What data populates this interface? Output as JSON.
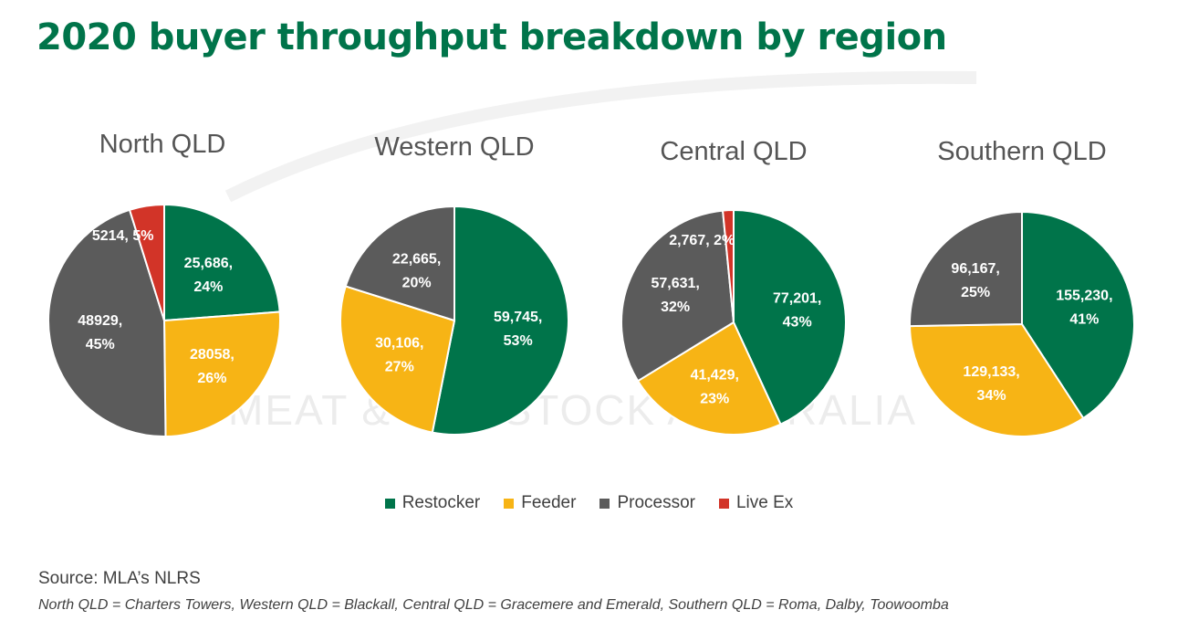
{
  "title": "2020 buyer throughput breakdown by region",
  "colors": {
    "title": "#00744A",
    "Restocker": "#00744A",
    "Feeder": "#F7B415",
    "Processor": "#5B5B5B",
    "Live Ex": "#D23428"
  },
  "legend": [
    "Restocker",
    "Feeder",
    "Processor",
    "Live Ex"
  ],
  "source": "Source: MLA’s NLRS",
  "footnote": "North QLD = Charters Towers, Western QLD = Blackall, Central QLD = Gracemere and Emerald, Southern QLD = Roma, Dalby, Toowoomba",
  "watermark_text": "MEAT & LIVESTOCK AUSTRALIA",
  "chart_data": [
    {
      "type": "pie",
      "title": "North QLD",
      "slices": [
        {
          "category": "Restocker",
          "value": 25686,
          "label": "25,686,",
          "pct": "24%"
        },
        {
          "category": "Feeder",
          "value": 28058,
          "label": "28058,",
          "pct": "26%"
        },
        {
          "category": "Processor",
          "value": 48929,
          "label": "48929,",
          "pct": "45%"
        },
        {
          "category": "Live Ex",
          "value": 5214,
          "label": "5214,",
          "pct": "5%"
        }
      ]
    },
    {
      "type": "pie",
      "title": "Western QLD",
      "slices": [
        {
          "category": "Restocker",
          "value": 59745,
          "label": "59,745,",
          "pct": "53%"
        },
        {
          "category": "Feeder",
          "value": 30106,
          "label": "30,106,",
          "pct": "27%"
        },
        {
          "category": "Processor",
          "value": 22665,
          "label": "22,665,",
          "pct": "20%"
        }
      ]
    },
    {
      "type": "pie",
      "title": "Central QLD",
      "slices": [
        {
          "category": "Restocker",
          "value": 77201,
          "label": "77,201,",
          "pct": "43%"
        },
        {
          "category": "Feeder",
          "value": 41429,
          "label": "41,429,",
          "pct": "23%"
        },
        {
          "category": "Processor",
          "value": 57631,
          "label": "57,631,",
          "pct": "32%"
        },
        {
          "category": "Live Ex",
          "value": 2767,
          "label": "2,767,",
          "pct": "2%"
        }
      ]
    },
    {
      "type": "pie",
      "title": "Southern QLD",
      "slices": [
        {
          "category": "Restocker",
          "value": 155230,
          "label": "155,230,",
          "pct": "41%"
        },
        {
          "category": "Feeder",
          "value": 129133,
          "label": "129,133,",
          "pct": "34%"
        },
        {
          "category": "Processor",
          "value": 96167,
          "label": "96,167,",
          "pct": "25%"
        }
      ]
    }
  ]
}
